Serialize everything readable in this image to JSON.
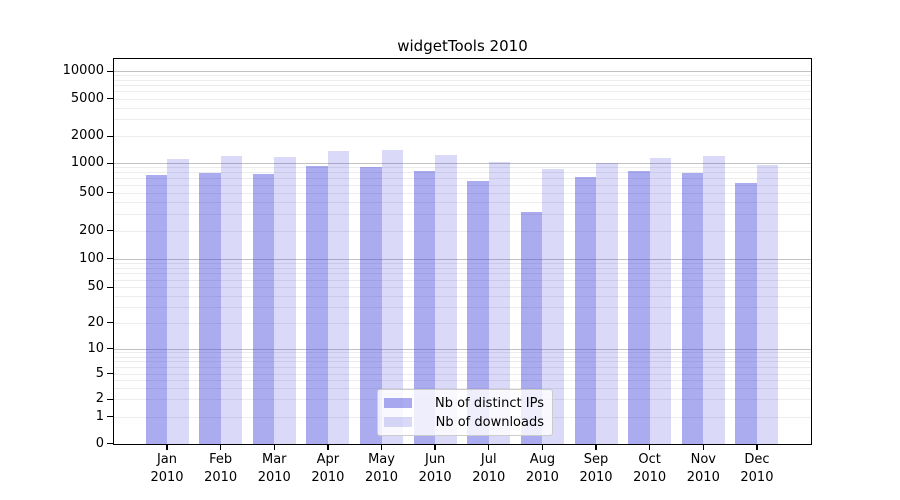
{
  "title": "widgetTools 2010",
  "legend": {
    "items": [
      {
        "label": "Nb of distinct IPs"
      },
      {
        "label": "Nb of downloads"
      }
    ]
  },
  "chart_data": {
    "type": "bar",
    "title": "widgetTools 2010",
    "categories": [
      "Jan",
      "Feb",
      "Mar",
      "Apr",
      "May",
      "Jun",
      "Jul",
      "Aug",
      "Sep",
      "Oct",
      "Nov",
      "Dec"
    ],
    "x_year": "2010",
    "series": [
      {
        "name": "Nb of distinct IPs",
        "color": "rgba(68,68,221,0.45)",
        "values": [
          755,
          805,
          790,
          940,
          920,
          830,
          670,
          315,
          735,
          835,
          805,
          640
        ]
      },
      {
        "name": "Nb of downloads",
        "color": "rgba(68,68,221,0.2)",
        "values": [
          1120,
          1205,
          1180,
          1370,
          1430,
          1250,
          1030,
          870,
          1010,
          1140,
          1220,
          970
        ]
      }
    ],
    "yscale": "symlog",
    "yticks": [
      0,
      1,
      2,
      5,
      10,
      20,
      50,
      100,
      200,
      500,
      1000,
      2000,
      5000,
      10000
    ],
    "major_grid_values": [
      10,
      100,
      1000,
      10000
    ],
    "ylim": [
      0,
      13000
    ],
    "grid": true,
    "legend_position": "lower center",
    "colors": {
      "axis": "#000000",
      "grid_major": "#c2c2c2",
      "grid_minor": "#ececec"
    }
  }
}
